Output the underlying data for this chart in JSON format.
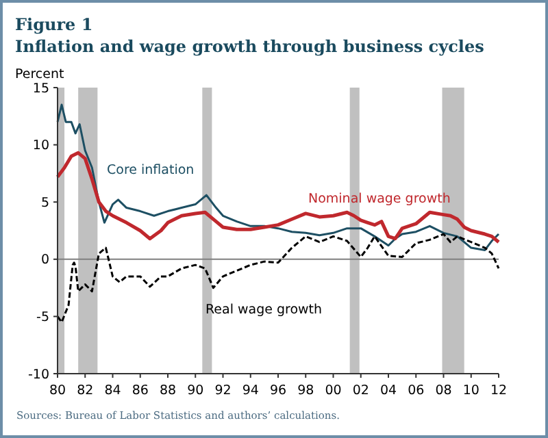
{
  "chart_data": {
    "type": "line",
    "title": "Figure 1",
    "subtitle": "Inflation and wage growth through business cycles",
    "ylabel": "Percent",
    "xlim": [
      1980,
      2012
    ],
    "ylim": [
      -10,
      15
    ],
    "xticks": [
      {
        "value": 1980,
        "label": "80"
      },
      {
        "value": 1982,
        "label": "82"
      },
      {
        "value": 1984,
        "label": "84"
      },
      {
        "value": 1986,
        "label": "86"
      },
      {
        "value": 1988,
        "label": "88"
      },
      {
        "value": 1990,
        "label": "90"
      },
      {
        "value": 1992,
        "label": "92"
      },
      {
        "value": 1994,
        "label": "94"
      },
      {
        "value": 1996,
        "label": "96"
      },
      {
        "value": 1998,
        "label": "98"
      },
      {
        "value": 2000,
        "label": "00"
      },
      {
        "value": 2002,
        "label": "02"
      },
      {
        "value": 2004,
        "label": "04"
      },
      {
        "value": 2006,
        "label": "06"
      },
      {
        "value": 2008,
        "label": "08"
      },
      {
        "value": 2010,
        "label": "10"
      },
      {
        "value": 2012,
        "label": "12"
      }
    ],
    "yticks": [
      -10,
      -5,
      0,
      5,
      10,
      15
    ],
    "grid": false,
    "bands": [
      {
        "axis": "x",
        "from": 1980,
        "to": 1980.5,
        "color": "#c0c0c0"
      },
      {
        "axis": "x",
        "from": 1981.5,
        "to": 1982.9,
        "color": "#c0c0c0"
      },
      {
        "axis": "x",
        "from": 1990.5,
        "to": 1991.2,
        "color": "#c0c0c0"
      },
      {
        "axis": "x",
        "from": 2001.2,
        "to": 2001.9,
        "color": "#c0c0c0"
      },
      {
        "axis": "x",
        "from": 2007.9,
        "to": 2009.5,
        "color": "#c0c0c0"
      }
    ],
    "ref_lines": [
      {
        "axis": "y",
        "value": 0,
        "color": "#808080"
      }
    ],
    "series": [
      {
        "name": "Core inflation",
        "color": "#1d4f63",
        "line_style": "solid",
        "x": [
          1980,
          1980.3,
          1980.6,
          1981,
          1981.3,
          1981.6,
          1982,
          1982.5,
          1983,
          1983.4,
          1984,
          1984.4,
          1985,
          1986,
          1987,
          1988,
          1989,
          1990,
          1990.8,
          1991.5,
          1992,
          1993,
          1994,
          1995,
          1996,
          1997,
          1998,
          1999,
          2000,
          2001,
          2002,
          2003,
          2004,
          2004.5,
          2005,
          2006,
          2007,
          2008,
          2009,
          2010,
          2011,
          2011.5,
          2012
        ],
        "values": [
          12,
          13.5,
          12,
          12,
          11,
          11.8,
          9.5,
          8,
          5,
          3.2,
          4.8,
          5.2,
          4.5,
          4.2,
          3.8,
          4.2,
          4.5,
          4.8,
          5.6,
          4.5,
          3.8,
          3.3,
          2.9,
          2.9,
          2.7,
          2.4,
          2.3,
          2.1,
          2.3,
          2.7,
          2.7,
          2,
          1.2,
          1.8,
          2.2,
          2.4,
          2.9,
          2.3,
          2,
          1,
          0.8,
          1.6,
          2.2
        ]
      },
      {
        "name": "Nominal wage growth",
        "color": "#c0282d",
        "line_style": "solid",
        "x": [
          1980,
          1980.5,
          1981,
          1981.5,
          1982,
          1982.5,
          1983,
          1983.5,
          1984,
          1985,
          1986,
          1986.7,
          1987.5,
          1988,
          1989,
          1990,
          1990.7,
          1991.5,
          1992,
          1993,
          1994,
          1995,
          1996,
          1997,
          1998,
          1999,
          2000,
          2001,
          2001.5,
          2002,
          2002.5,
          2003,
          2003.5,
          2004,
          2004.5,
          2005,
          2006,
          2007,
          2008,
          2008.5,
          2009,
          2009.5,
          2010,
          2011,
          2011.5,
          2012
        ],
        "values": [
          7.2,
          8,
          9,
          9.3,
          8.8,
          7,
          5,
          4.2,
          3.8,
          3.2,
          2.5,
          1.8,
          2.5,
          3.2,
          3.8,
          4,
          4.1,
          3.3,
          2.8,
          2.6,
          2.6,
          2.8,
          3,
          3.5,
          4,
          3.7,
          3.8,
          4.1,
          3.8,
          3.4,
          3.2,
          3,
          3.3,
          2,
          1.8,
          2.7,
          3.1,
          4.1,
          3.9,
          3.8,
          3.5,
          2.8,
          2.5,
          2.2,
          2,
          1.5
        ]
      },
      {
        "name": "Real wage growth",
        "color": "#000000",
        "line_style": "dashed",
        "x": [
          1980,
          1980.3,
          1980.8,
          1981.1,
          1981.2,
          1981.3,
          1981.5,
          1982,
          1982.5,
          1983,
          1983.5,
          1984,
          1984.5,
          1985,
          1986,
          1986.7,
          1987.5,
          1988,
          1989,
          1990,
          1990.7,
          1991.3,
          1992,
          1993,
          1994,
          1995,
          1996,
          1997,
          1998,
          1999,
          2000,
          2001,
          2002,
          2002.5,
          2003,
          2004,
          2005,
          2006,
          2007,
          2008,
          2008.5,
          2009,
          2010,
          2011,
          2011.5,
          2012
        ],
        "values": [
          -5,
          -5.5,
          -4,
          -0.5,
          -0.3,
          -0.6,
          -2.8,
          -2.2,
          -2.8,
          0.5,
          1,
          -1.5,
          -2,
          -1.5,
          -1.5,
          -2.4,
          -1.5,
          -1.5,
          -0.8,
          -0.5,
          -0.8,
          -2.5,
          -1.5,
          -1,
          -0.5,
          -0.2,
          -0.3,
          1,
          2,
          1.5,
          2,
          1.6,
          0.2,
          1,
          2,
          0.3,
          0.2,
          1.4,
          1.7,
          2.2,
          1.5,
          2,
          1.5,
          1,
          0.5,
          -0.8
        ]
      }
    ],
    "annotations": [
      "Sources: Bureau of Labor Statistics and authors’ calculations."
    ]
  }
}
